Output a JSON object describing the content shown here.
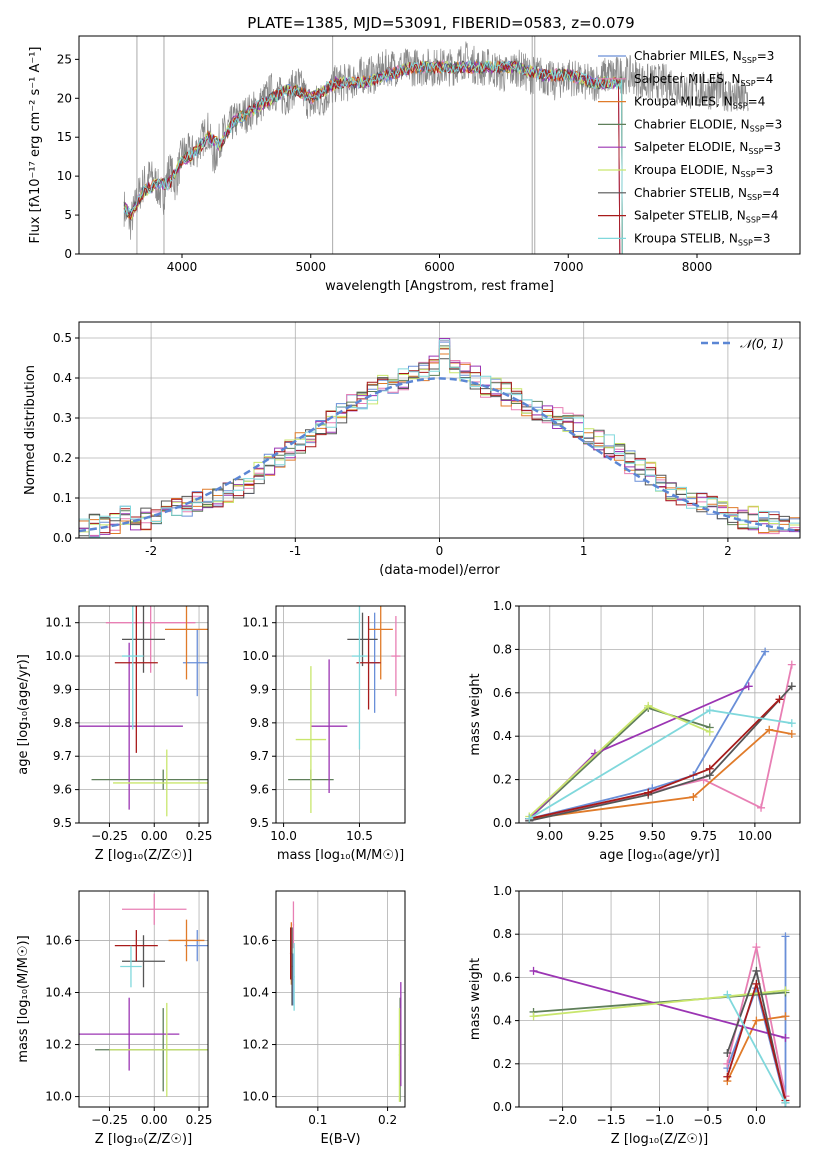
{
  "figure_title": "PLATE=1385, MJD=53091, FIBERID=0583, z=0.079",
  "colors": {
    "Chabrier MILES": "#6a8fd8",
    "Salpeter MILES": "#e87fb4",
    "Kroupa MILES": "#e07b2a",
    "Chabrier ELODIE": "#5f7f5a",
    "Salpeter ELODIE": "#9b35b3",
    "Kroupa ELODIE": "#c9e66d",
    "Chabrier STELIB": "#555555",
    "Salpeter STELIB": "#a81b1b",
    "Kroupa STELIB": "#80d8dc"
  },
  "chart_data": [
    {
      "id": "spectrum",
      "type": "line",
      "title": "PLATE=1385, MJD=53091, FIBERID=0583, z=0.079",
      "xlabel": "wavelength [Angstrom, rest frame]",
      "ylabel": "Flux [fλ10⁻¹⁷ erg cm⁻² s⁻¹ A⁻¹]",
      "xlim": [
        3200,
        8800
      ],
      "ylim": [
        0,
        28
      ],
      "xticks": [
        4000,
        5000,
        6000,
        7000,
        8000
      ],
      "yticks": [
        0,
        5,
        10,
        15,
        20,
        25
      ],
      "legend_position": "top-right",
      "data_color": "#888888",
      "data_x": [
        3550,
        3600,
        3650,
        3700,
        3750,
        3800,
        3850,
        3900,
        3950,
        4000,
        4100,
        4200,
        4250,
        4300,
        4400,
        4500,
        4600,
        4700,
        4800,
        4900,
        5000,
        5100,
        5200,
        5300,
        5400,
        5500,
        5600,
        5700,
        5800,
        5900,
        6000,
        6100,
        6200,
        6300,
        6400,
        6500,
        6600,
        6700,
        6800,
        6900,
        7000,
        7100,
        7200,
        7300,
        7400,
        7500,
        7600,
        7700,
        7800,
        7900,
        8000,
        8100,
        8200,
        8300,
        8400
      ],
      "data_y": [
        6,
        4,
        7,
        9,
        10,
        9,
        7,
        11,
        9,
        13,
        13,
        16,
        12,
        15,
        17,
        18,
        19,
        21,
        20,
        22,
        19,
        20,
        22,
        22,
        23,
        23,
        24,
        24,
        24,
        24,
        24,
        24,
        25,
        24,
        24,
        23,
        24,
        23,
        23,
        22,
        23,
        22,
        22,
        23,
        23,
        23,
        22,
        22,
        22,
        21,
        21,
        21,
        21,
        20,
        20
      ],
      "models_x": [
        3550,
        3600,
        3700,
        3800,
        3900,
        4000,
        4100,
        4200,
        4300,
        4400,
        4500,
        4600,
        4700,
        4800,
        4900,
        5000,
        5200,
        5400,
        5600,
        5800,
        6000,
        6200,
        6400,
        6600,
        6800,
        7000,
        7200,
        7400
      ],
      "models_y": [
        6,
        5,
        8,
        9,
        9,
        12,
        13,
        15,
        14,
        17,
        18,
        19,
        20,
        21,
        21,
        20,
        22,
        22,
        23,
        24,
        24,
        24,
        24,
        24,
        23,
        23,
        22,
        22
      ],
      "series": [
        {
          "name": "Chabrier MILES, N_SSP=3",
          "sub": "SSP",
          "prefix": "Chabrier MILES, N",
          "suffix": "=3"
        },
        {
          "name": "Salpeter MILES, N_SSP=4",
          "sub": "SSP",
          "prefix": "Salpeter MILES, N",
          "suffix": "=4"
        },
        {
          "name": "Kroupa MILES, N_SSP=4",
          "sub": "SSP",
          "prefix": "Kroupa MILES, N",
          "suffix": "=4"
        },
        {
          "name": "Chabrier ELODIE, N_SSP=3",
          "sub": "SSP",
          "prefix": "Chabrier ELODIE, N",
          "suffix": "=3"
        },
        {
          "name": "Salpeter ELODIE, N_SSP=3",
          "sub": "SSP",
          "prefix": "Salpeter ELODIE, N",
          "suffix": "=3"
        },
        {
          "name": "Kroupa ELODIE, N_SSP=3",
          "sub": "SSP",
          "prefix": "Kroupa ELODIE, N",
          "suffix": "=3"
        },
        {
          "name": "Chabrier STELIB, N_SSP=4",
          "sub": "SSP",
          "prefix": "Chabrier STELIB, N",
          "suffix": "=4"
        },
        {
          "name": "Salpeter STELIB, N_SSP=4",
          "sub": "SSP",
          "prefix": "Salpeter STELIB, N",
          "suffix": "=4"
        },
        {
          "name": "Kroupa STELIB, N_SSP=3",
          "sub": "SSP",
          "prefix": "Kroupa STELIB, N",
          "suffix": "=3"
        }
      ]
    },
    {
      "id": "residuals",
      "type": "histogram",
      "xlabel": "(data-model)/error",
      "ylabel": "Normed distribution",
      "xlim": [
        -2.5,
        2.5
      ],
      "ylim": [
        0,
        0.54
      ],
      "xticks": [
        -2,
        -1,
        0,
        1,
        2
      ],
      "yticks": [
        0.0,
        0.1,
        0.2,
        0.3,
        0.4,
        0.5
      ],
      "legend_position": "top-right",
      "legend_label": "𝒩(0, 1)",
      "bin_edges_start": -2.5,
      "bin_width": 0.1,
      "base_density": [
        0.02,
        0.03,
        0.03,
        0.04,
        0.05,
        0.05,
        0.05,
        0.06,
        0.07,
        0.07,
        0.08,
        0.09,
        0.1,
        0.1,
        0.11,
        0.13,
        0.14,
        0.16,
        0.18,
        0.2,
        0.22,
        0.24,
        0.25,
        0.27,
        0.29,
        0.31,
        0.33,
        0.35,
        0.36,
        0.38,
        0.39,
        0.4,
        0.4,
        0.41,
        0.43,
        0.47,
        0.44,
        0.42,
        0.4,
        0.38,
        0.37,
        0.36,
        0.35,
        0.33,
        0.32,
        0.31,
        0.3,
        0.29,
        0.28,
        0.26,
        0.25,
        0.23,
        0.21,
        0.19,
        0.17,
        0.16,
        0.14,
        0.12,
        0.11,
        0.1,
        0.09,
        0.08,
        0.07,
        0.06,
        0.05,
        0.05,
        0.04,
        0.04,
        0.03,
        0.03
      ]
    },
    {
      "id": "age_vs_Z",
      "type": "errorbar",
      "xlabel": "Z [log₁₀(Z/Z☉)]",
      "ylabel": "age  [log₁₀(age/yr)]",
      "xlim": [
        -0.42,
        0.3
      ],
      "ylim": [
        9.5,
        10.15
      ],
      "xticks": [
        -0.25,
        0.0,
        0.25
      ],
      "xticklabels": [
        "−0.25",
        "0.00",
        "0.25"
      ],
      "yticks": [
        9.5,
        9.6,
        9.7,
        9.8,
        9.9,
        10.0,
        10.1
      ],
      "points": [
        {
          "model": "Chabrier MILES",
          "x": 0.24,
          "y": 9.98,
          "ex": 0.08,
          "ey": 0.1
        },
        {
          "model": "Salpeter MILES",
          "x": -0.02,
          "y": 10.1,
          "ex": 0.25,
          "ey": 0.15
        },
        {
          "model": "Kroupa MILES",
          "x": 0.18,
          "y": 10.08,
          "ex": 0.12,
          "ey": 0.15
        },
        {
          "model": "Chabrier ELODIE",
          "x": 0.05,
          "y": 9.63,
          "ex": 0.4,
          "ey": 0.03
        },
        {
          "model": "Salpeter ELODIE",
          "x": -0.14,
          "y": 9.79,
          "ex": 0.3,
          "ey": 0.25
        },
        {
          "model": "Kroupa ELODIE",
          "x": 0.07,
          "y": 9.62,
          "ex": 0.3,
          "ey": 0.1
        },
        {
          "model": "Chabrier STELIB",
          "x": -0.06,
          "y": 10.05,
          "ex": 0.12,
          "ey": 0.1
        },
        {
          "model": "Salpeter STELIB",
          "x": -0.1,
          "y": 9.98,
          "ex": 0.12,
          "ey": 0.27
        },
        {
          "model": "Kroupa STELIB",
          "x": -0.12,
          "y": 10.0,
          "ex": 0.06,
          "ey": 0.22
        }
      ]
    },
    {
      "id": "age_vs_mass",
      "type": "errorbar",
      "xlabel": "mass [log₁₀(M/M☉)]",
      "ylabel": "",
      "xlim": [
        9.95,
        10.8
      ],
      "ylim": [
        9.5,
        10.15
      ],
      "xticks": [
        10.0,
        10.5
      ],
      "xticklabels": [
        "10.0",
        "10.5"
      ],
      "yticks": [
        9.5,
        9.6,
        9.7,
        9.8,
        9.9,
        10.0,
        10.1
      ],
      "points": [
        {
          "model": "Chabrier MILES",
          "x": 10.6,
          "y": 9.98,
          "ex": 0.03,
          "ey": 0.15
        },
        {
          "model": "Salpeter MILES",
          "x": 10.74,
          "y": 10.0,
          "ex": 0.03,
          "ey": 0.12
        },
        {
          "model": "Kroupa MILES",
          "x": 10.64,
          "y": 10.08,
          "ex": 0.08,
          "ey": 0.15
        },
        {
          "model": "Chabrier ELODIE",
          "x": 10.18,
          "y": 9.63,
          "ex": 0.15,
          "ey": 0.03
        },
        {
          "model": "Salpeter ELODIE",
          "x": 10.3,
          "y": 9.79,
          "ex": 0.12,
          "ey": 0.2
        },
        {
          "model": "Kroupa ELODIE",
          "x": 10.18,
          "y": 9.75,
          "ex": 0.1,
          "ey": 0.22
        },
        {
          "model": "Chabrier STELIB",
          "x": 10.52,
          "y": 10.05,
          "ex": 0.1,
          "ey": 0.08
        },
        {
          "model": "Salpeter STELIB",
          "x": 10.56,
          "y": 9.98,
          "ex": 0.08,
          "ey": 0.14
        },
        {
          "model": "Kroupa STELIB",
          "x": 10.5,
          "y": 10.0,
          "ex": 0.05,
          "ey": 0.28
        }
      ]
    },
    {
      "id": "weight_vs_age",
      "type": "line",
      "xlabel": "age  [log₁₀(age/yr)]",
      "ylabel": "mass weight",
      "xlim": [
        8.85,
        10.22
      ],
      "ylim": [
        0,
        1.0
      ],
      "xticks": [
        9.0,
        9.25,
        9.5,
        9.75,
        10.0
      ],
      "xticklabels": [
        "9.00",
        "9.25",
        "9.50",
        "9.75",
        "10.00"
      ],
      "yticks": [
        0.0,
        0.2,
        0.4,
        0.6,
        0.8,
        1.0
      ],
      "lines": [
        {
          "model": "Chabrier MILES",
          "x": [
            8.9,
            9.5,
            9.7,
            10.05
          ],
          "y": [
            0.02,
            0.16,
            0.22,
            0.79
          ]
        },
        {
          "model": "Salpeter MILES",
          "x": [
            8.9,
            9.75,
            10.03,
            10.18
          ],
          "y": [
            0.01,
            0.2,
            0.07,
            0.73
          ]
        },
        {
          "model": "Kroupa MILES",
          "x": [
            8.9,
            9.7,
            10.07,
            10.18
          ],
          "y": [
            0.02,
            0.12,
            0.43,
            0.41
          ]
        },
        {
          "model": "Chabrier ELODIE",
          "x": [
            8.9,
            9.48,
            9.78
          ],
          "y": [
            0.02,
            0.53,
            0.44
          ]
        },
        {
          "model": "Salpeter ELODIE",
          "x": [
            8.9,
            9.22,
            9.97
          ],
          "y": [
            0.02,
            0.32,
            0.63
          ]
        },
        {
          "model": "Kroupa ELODIE",
          "x": [
            8.9,
            9.48,
            9.78
          ],
          "y": [
            0.03,
            0.54,
            0.42
          ]
        },
        {
          "model": "Chabrier STELIB",
          "x": [
            8.9,
            9.48,
            9.78,
            10.18
          ],
          "y": [
            0.01,
            0.13,
            0.22,
            0.63
          ]
        },
        {
          "model": "Salpeter STELIB",
          "x": [
            8.9,
            9.48,
            9.78,
            10.12
          ],
          "y": [
            0.02,
            0.14,
            0.25,
            0.57
          ]
        },
        {
          "model": "Kroupa STELIB",
          "x": [
            8.9,
            9.78,
            10.18
          ],
          "y": [
            0.02,
            0.52,
            0.46
          ]
        }
      ]
    },
    {
      "id": "mass_vs_Z",
      "type": "errorbar",
      "xlabel": "Z [log₁₀(Z/Z☉)]",
      "ylabel": "mass [log₁₀(M/M☉)]",
      "xlim": [
        -0.42,
        0.3
      ],
      "ylim": [
        9.96,
        10.79
      ],
      "xticks": [
        -0.25,
        0.0,
        0.25
      ],
      "xticklabels": [
        "−0.25",
        "0.00",
        "0.25"
      ],
      "yticks": [
        10.0,
        10.2,
        10.4,
        10.6
      ],
      "points": [
        {
          "model": "Chabrier MILES",
          "x": 0.24,
          "y": 10.58,
          "ex": 0.07,
          "ey": 0.06
        },
        {
          "model": "Salpeter MILES",
          "x": 0.0,
          "y": 10.72,
          "ex": 0.18,
          "ey": 0.06
        },
        {
          "model": "Kroupa MILES",
          "x": 0.18,
          "y": 10.6,
          "ex": 0.1,
          "ey": 0.08
        },
        {
          "model": "Chabrier ELODIE",
          "x": 0.05,
          "y": 10.18,
          "ex": 0.38,
          "ey": 0.16
        },
        {
          "model": "Salpeter ELODIE",
          "x": -0.14,
          "y": 10.24,
          "ex": 0.28,
          "ey": 0.14
        },
        {
          "model": "Kroupa ELODIE",
          "x": 0.07,
          "y": 10.18,
          "ex": 0.32,
          "ey": 0.18
        },
        {
          "model": "Chabrier STELIB",
          "x": -0.06,
          "y": 10.52,
          "ex": 0.12,
          "ey": 0.1
        },
        {
          "model": "Salpeter STELIB",
          "x": -0.1,
          "y": 10.58,
          "ex": 0.12,
          "ey": 0.06
        },
        {
          "model": "Kroupa STELIB",
          "x": -0.13,
          "y": 10.5,
          "ex": 0.06,
          "ey": 0.08
        }
      ]
    },
    {
      "id": "mass_vs_EBV",
      "type": "errorbar",
      "xlabel": "E(B-V)",
      "ylabel": "",
      "xlim": [
        0.04,
        0.225
      ],
      "ylim": [
        9.96,
        10.79
      ],
      "xticks": [
        0.1,
        0.2
      ],
      "xticklabels": [
        "0.1",
        "0.2"
      ],
      "yticks": [
        10.0,
        10.2,
        10.4,
        10.6
      ],
      "points": [
        {
          "model": "Chabrier MILES",
          "x": 0.064,
          "y": 10.45,
          "ex": 0.001,
          "ey": 0.1
        },
        {
          "model": "Salpeter MILES",
          "x": 0.065,
          "y": 10.66,
          "ex": 0.001,
          "ey": 0.09
        },
        {
          "model": "Kroupa MILES",
          "x": 0.062,
          "y": 10.55,
          "ex": 0.001,
          "ey": 0.12
        },
        {
          "model": "Chabrier ELODIE",
          "x": 0.218,
          "y": 10.18,
          "ex": 0.001,
          "ey": 0.2
        },
        {
          "model": "Salpeter ELODIE",
          "x": 0.219,
          "y": 10.24,
          "ex": 0.001,
          "ey": 0.2
        },
        {
          "model": "Kroupa ELODIE",
          "x": 0.217,
          "y": 10.16,
          "ex": 0.001,
          "ey": 0.18
        },
        {
          "model": "Chabrier STELIB",
          "x": 0.063,
          "y": 10.5,
          "ex": 0.001,
          "ey": 0.15
        },
        {
          "model": "Salpeter STELIB",
          "x": 0.061,
          "y": 10.55,
          "ex": 0.001,
          "ey": 0.1
        },
        {
          "model": "Kroupa STELIB",
          "x": 0.066,
          "y": 10.46,
          "ex": 0.001,
          "ey": 0.13
        }
      ]
    },
    {
      "id": "weight_vs_Z",
      "type": "line",
      "xlabel": "Z [log₁₀(Z/Z☉)]",
      "ylabel": "mass weight",
      "xlim": [
        -2.45,
        0.45
      ],
      "ylim": [
        0,
        1.0
      ],
      "xticks": [
        -2.0,
        -1.5,
        -1.0,
        -0.5,
        0.0
      ],
      "xticklabels": [
        "−2.0",
        "−1.5",
        "−1.0",
        "−0.5",
        "0.0"
      ],
      "yticks": [
        0.0,
        0.2,
        0.4,
        0.6,
        0.8,
        1.0
      ],
      "lines": [
        {
          "model": "Chabrier MILES",
          "x": [
            0.3,
            0.3,
            0.0,
            -0.3
          ],
          "y": [
            0.79,
            0.02,
            0.55,
            0.18
          ]
        },
        {
          "model": "Salpeter MILES",
          "x": [
            0.3,
            0.0,
            -0.3
          ],
          "y": [
            0.05,
            0.74,
            0.2
          ]
        },
        {
          "model": "Kroupa MILES",
          "x": [
            0.3,
            0.0,
            -0.3
          ],
          "y": [
            0.42,
            0.4,
            0.12
          ]
        },
        {
          "model": "Chabrier ELODIE",
          "x": [
            -2.3,
            0.3
          ],
          "y": [
            0.44,
            0.53
          ]
        },
        {
          "model": "Salpeter ELODIE",
          "x": [
            -2.3,
            0.3
          ],
          "y": [
            0.63,
            0.32
          ]
        },
        {
          "model": "Kroupa ELODIE",
          "x": [
            -2.3,
            0.3
          ],
          "y": [
            0.42,
            0.54
          ]
        },
        {
          "model": "Chabrier STELIB",
          "x": [
            0.3,
            0.0,
            -0.3
          ],
          "y": [
            0.02,
            0.63,
            0.25
          ]
        },
        {
          "model": "Salpeter STELIB",
          "x": [
            0.3,
            0.0,
            -0.3
          ],
          "y": [
            0.03,
            0.57,
            0.14
          ]
        },
        {
          "model": "Kroupa STELIB",
          "x": [
            0.3,
            -0.3
          ],
          "y": [
            0.02,
            0.52
          ]
        }
      ]
    }
  ]
}
